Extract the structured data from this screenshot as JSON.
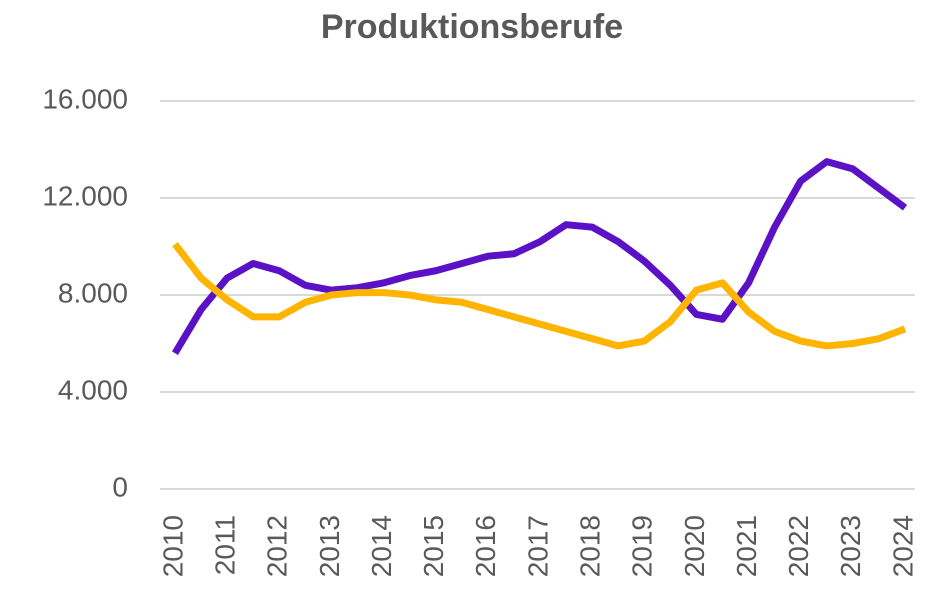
{
  "chart_data": {
    "type": "line",
    "title": "Produktionsberufe",
    "x": [
      2010,
      2010.5,
      2011,
      2011.5,
      2012,
      2012.5,
      2013,
      2013.5,
      2014,
      2014.5,
      2015,
      2015.5,
      2016,
      2016.5,
      2017,
      2017.5,
      2018,
      2018.5,
      2019,
      2019.5,
      2020,
      2020.5,
      2021,
      2021.5,
      2022,
      2022.5,
      2023,
      2023.5,
      2024
    ],
    "series": [
      {
        "color": "#5b12c7",
        "values": [
          5600,
          7400,
          8700,
          9300,
          9000,
          8400,
          8200,
          8300,
          8500,
          8800,
          9000,
          9300,
          9600,
          9700,
          10200,
          10900,
          10800,
          10200,
          9400,
          8400,
          7200,
          7000,
          8500,
          10800,
          12700,
          13500,
          13200,
          12400,
          11600
        ]
      },
      {
        "color": "#ffb400",
        "values": [
          10100,
          8700,
          7800,
          7100,
          7100,
          7700,
          8000,
          8100,
          8100,
          8000,
          7800,
          7700,
          7400,
          7100,
          6800,
          6500,
          6200,
          5900,
          6100,
          6900,
          8200,
          8500,
          7300,
          6500,
          6100,
          5900,
          6000,
          6200,
          6600
        ]
      }
    ],
    "xlim": [
      2010,
      2024
    ],
    "xticks": [
      2010,
      2011,
      2012,
      2013,
      2014,
      2015,
      2016,
      2017,
      2018,
      2019,
      2020,
      2021,
      2022,
      2023,
      2024
    ],
    "ylim": [
      0,
      16000
    ],
    "yticks": [
      0,
      {
        "value": 4000,
        "label": "4.000"
      },
      {
        "value": 8000,
        "label": "8.000"
      },
      {
        "value": 12000,
        "label": "12.000"
      },
      {
        "value": 16000,
        "label": "16.000"
      }
    ],
    "grid": true
  }
}
